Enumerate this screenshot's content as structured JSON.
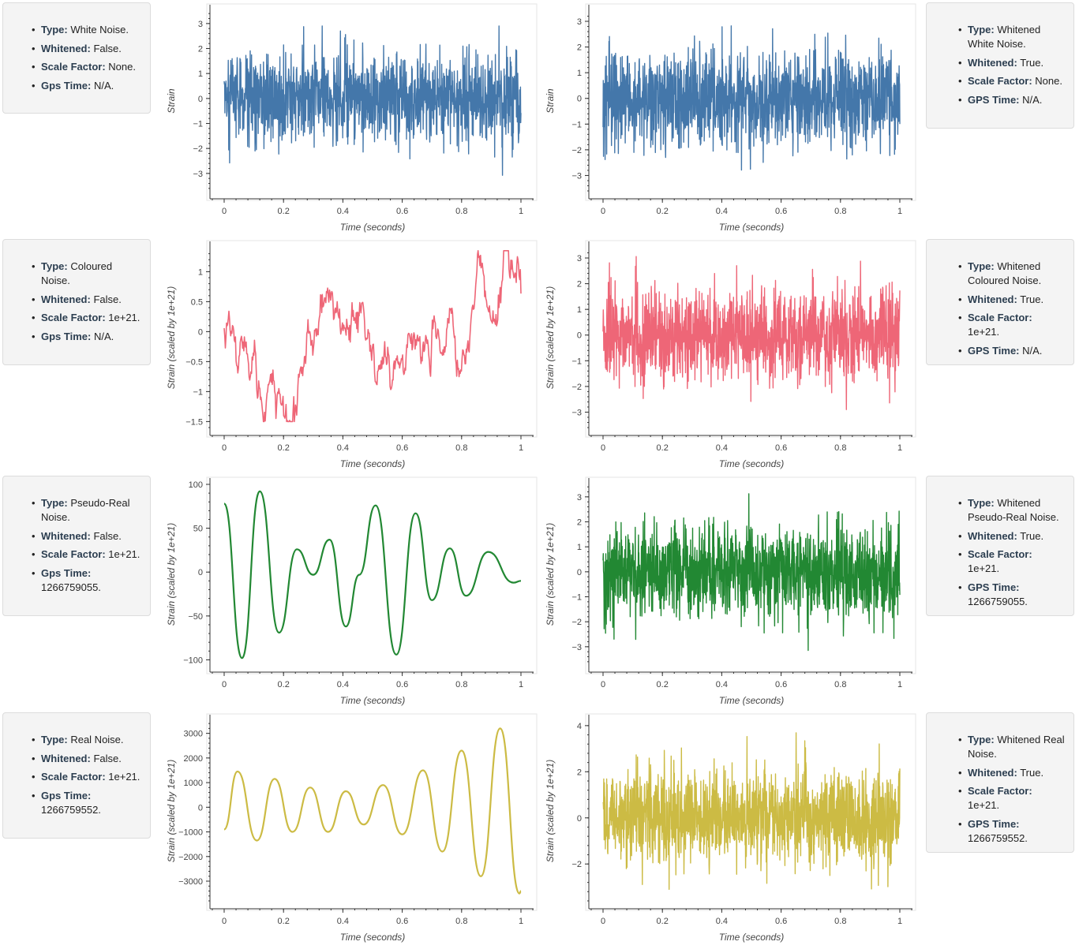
{
  "info_cards": [
    {
      "items": [
        {
          "label": "Type:",
          "value": " White Noise."
        },
        {
          "label": "Whitened:",
          "value": " False."
        },
        {
          "label": "Scale Factor:",
          "value": " None."
        },
        {
          "label": "Gps Time:",
          "value": " N/A."
        }
      ]
    },
    {
      "items": [
        {
          "label": "Type:",
          "value": " Whitened White Noise."
        },
        {
          "label": "Whitened:",
          "value": " True."
        },
        {
          "label": "Scale Factor:",
          "value": " None."
        },
        {
          "label": "GPS Time:",
          "value": " N/A."
        }
      ]
    },
    {
      "items": [
        {
          "label": "Type:",
          "value": " Coloured Noise."
        },
        {
          "label": "Whitened:",
          "value": " False."
        },
        {
          "label": "Scale Factor:",
          "value": " 1e+21."
        },
        {
          "label": "Gps Time:",
          "value": " N/A."
        }
      ]
    },
    {
      "items": [
        {
          "label": "Type:",
          "value": " Whitened Coloured Noise."
        },
        {
          "label": "Whitened:",
          "value": " True."
        },
        {
          "label": "Scale Factor:",
          "value": " 1e+21."
        },
        {
          "label": "GPS Time:",
          "value": " N/A."
        }
      ]
    },
    {
      "items": [
        {
          "label": "Type:",
          "value": " Pseudo-Real Noise."
        },
        {
          "label": "Whitened:",
          "value": " False."
        },
        {
          "label": "Scale Factor:",
          "value": " 1e+21."
        },
        {
          "label": "Gps Time:",
          "value": " 1266759055."
        }
      ]
    },
    {
      "items": [
        {
          "label": "Type:",
          "value": " Whitened Pseudo-Real Noise."
        },
        {
          "label": "Whitened:",
          "value": " True."
        },
        {
          "label": "Scale Factor:",
          "value": " 1e+21."
        },
        {
          "label": "GPS Time:",
          "value": " 1266759055."
        }
      ]
    },
    {
      "items": [
        {
          "label": "Type:",
          "value": " Real Noise."
        },
        {
          "label": "Whitened:",
          "value": " False."
        },
        {
          "label": "Scale Factor:",
          "value": " 1e+21."
        },
        {
          "label": "Gps Time:",
          "value": " 1266759552."
        }
      ]
    },
    {
      "items": [
        {
          "label": "Type:",
          "value": " Whitened Real Noise."
        },
        {
          "label": "Whitened:",
          "value": " True."
        },
        {
          "label": "Scale Factor:",
          "value": " 1e+21."
        },
        {
          "label": "GPS Time:",
          "value": " 1266759552."
        }
      ]
    }
  ],
  "chart_data": [
    {
      "type": "line",
      "name": "white-noise",
      "xlabel": "Time (seconds)",
      "ylabel": "Strain",
      "xlim": [
        0,
        1
      ],
      "ylim": [
        -3.7,
        3.5
      ],
      "yticks": [
        -3,
        -2,
        -1,
        0,
        1,
        2,
        3
      ],
      "ytick_labels": [
        "−3",
        "−2",
        "−1",
        "0",
        "1",
        "2",
        "3"
      ],
      "xticks": [
        0,
        0.2,
        0.4,
        0.6,
        0.8,
        1
      ],
      "xtick_labels": [
        "0",
        "0.2",
        "0.4",
        "0.6",
        "0.8",
        "1"
      ],
      "color": "#4477aa",
      "kind": "noise",
      "amplitude": 0.9,
      "max": 2.9,
      "min": -3.6,
      "seed": 11
    },
    {
      "type": "line",
      "name": "whitened-white-noise",
      "xlabel": "Time (seconds)",
      "ylabel": "Strain",
      "xlim": [
        0,
        1
      ],
      "ylim": [
        -3.6,
        3.4
      ],
      "yticks": [
        -3,
        -2,
        -1,
        0,
        1,
        2,
        3
      ],
      "ytick_labels": [
        "−3",
        "−2",
        "−1",
        "0",
        "1",
        "2",
        "3"
      ],
      "xticks": [
        0,
        0.2,
        0.4,
        0.6,
        0.8,
        1
      ],
      "xtick_labels": [
        "0",
        "0.2",
        "0.4",
        "0.6",
        "0.8",
        "1"
      ],
      "color": "#4477aa",
      "kind": "noise",
      "amplitude": 0.9,
      "max": 2.9,
      "min": -3.4,
      "seed": 12
    },
    {
      "type": "line",
      "name": "coloured-noise",
      "xlabel": "Time (seconds)",
      "ylabel": "Strain (scaled by 1e+21)",
      "xlim": [
        0,
        1
      ],
      "ylim": [
        -1.6,
        1.4
      ],
      "yticks": [
        -1.5,
        -1,
        -0.5,
        0,
        0.5,
        1
      ],
      "ytick_labels": [
        "−1.5",
        "−1",
        "−0.5",
        "0",
        "0.5",
        "1"
      ],
      "xticks": [
        0,
        0.2,
        0.4,
        0.6,
        0.8,
        1
      ],
      "xtick_labels": [
        "0",
        "0.2",
        "0.4",
        "0.6",
        "0.8",
        "1"
      ],
      "color": "#ee6677",
      "kind": "smooth-noise",
      "amplitude": 0.45,
      "max": 1.35,
      "min": -1.5,
      "seed": 21
    },
    {
      "type": "line",
      "name": "whitened-coloured-noise",
      "xlabel": "Time (seconds)",
      "ylabel": "Strain (scaled by 1e+21)",
      "xlim": [
        0,
        1
      ],
      "ylim": [
        -3.6,
        3.4
      ],
      "yticks": [
        -3,
        -2,
        -1,
        0,
        1,
        2,
        3
      ],
      "ytick_labels": [
        "−3",
        "−2",
        "−1",
        "0",
        "1",
        "2",
        "3"
      ],
      "xticks": [
        0,
        0.2,
        0.4,
        0.6,
        0.8,
        1
      ],
      "xtick_labels": [
        "0",
        "0.2",
        "0.4",
        "0.6",
        "0.8",
        "1"
      ],
      "color": "#ee6677",
      "kind": "noise",
      "amplitude": 0.9,
      "max": 3.3,
      "min": -3.4,
      "seed": 22
    },
    {
      "type": "line",
      "name": "pseudo-real-noise",
      "xlabel": "Time (seconds)",
      "ylabel": "Strain (scaled by 1e+21)",
      "xlim": [
        0,
        1
      ],
      "ylim": [
        -105,
        100
      ],
      "yticks": [
        -100,
        -50,
        0,
        50,
        100
      ],
      "ytick_labels": [
        "−100",
        "−50",
        "0",
        "50",
        "100"
      ],
      "xticks": [
        0,
        0.2,
        0.4,
        0.6,
        0.8,
        1
      ],
      "xtick_labels": [
        "0",
        "0.2",
        "0.4",
        "0.6",
        "0.8",
        "1"
      ],
      "color": "#228833",
      "kind": "points",
      "x": [
        0,
        0.06,
        0.12,
        0.185,
        0.245,
        0.3,
        0.355,
        0.41,
        0.455,
        0.51,
        0.58,
        0.645,
        0.7,
        0.76,
        0.815,
        0.89,
        0.975,
        1.0
      ],
      "y": [
        78,
        -98,
        92,
        -69,
        26,
        -3,
        37,
        -62,
        -3,
        76,
        -94,
        67,
        -32,
        27,
        -27,
        23,
        -12,
        -10
      ]
    },
    {
      "type": "line",
      "name": "whitened-pseudo-real-noise",
      "xlabel": "Time (seconds)",
      "ylabel": "Strain (scaled by 1e+21)",
      "xlim": [
        0,
        1
      ],
      "ylim": [
        -3.7,
        3.5
      ],
      "yticks": [
        -3,
        -2,
        -1,
        0,
        1,
        2,
        3
      ],
      "ytick_labels": [
        "−3",
        "−2",
        "−1",
        "0",
        "1",
        "2",
        "3"
      ],
      "xticks": [
        0,
        0.2,
        0.4,
        0.6,
        0.8,
        1
      ],
      "xtick_labels": [
        "0",
        "0.2",
        "0.4",
        "0.6",
        "0.8",
        "1"
      ],
      "color": "#228833",
      "kind": "noise",
      "amplitude": 0.9,
      "max": 3.2,
      "min": -3.5,
      "seed": 31
    },
    {
      "type": "line",
      "name": "real-noise",
      "xlabel": "Time (seconds)",
      "ylabel": "Strain (scaled by 1e+21)",
      "xlim": [
        0,
        1
      ],
      "ylim": [
        -3800,
        3500
      ],
      "yticks": [
        -3000,
        -2000,
        -1000,
        0,
        1000,
        2000,
        3000
      ],
      "ytick_labels": [
        "−3000",
        "−2000",
        "−1000",
        "0",
        "1000",
        "2000",
        "3000"
      ],
      "xticks": [
        0,
        0.2,
        0.4,
        0.6,
        0.8,
        1
      ],
      "xtick_labels": [
        "0",
        "0.2",
        "0.4",
        "0.6",
        "0.8",
        "1"
      ],
      "color": "#ccbb44",
      "kind": "points",
      "x": [
        0,
        0.045,
        0.11,
        0.17,
        0.23,
        0.29,
        0.35,
        0.41,
        0.47,
        0.535,
        0.6,
        0.67,
        0.735,
        0.8,
        0.865,
        0.93,
        0.995,
        1.0
      ],
      "y": [
        -900,
        1450,
        -1350,
        1150,
        -1000,
        800,
        -1000,
        650,
        -700,
        900,
        -1100,
        1500,
        -1800,
        2300,
        -2800,
        3200,
        -3500,
        -3400
      ]
    },
    {
      "type": "line",
      "name": "whitened-real-noise",
      "xlabel": "Time (seconds)",
      "ylabel": "Strain (scaled by 1e+21)",
      "xlim": [
        0,
        1
      ],
      "ylim": [
        -3.6,
        4.2
      ],
      "yticks": [
        -2,
        0,
        2,
        4
      ],
      "ytick_labels": [
        "−2",
        "0",
        "2",
        "4"
      ],
      "xticks": [
        0,
        0.2,
        0.4,
        0.6,
        0.8,
        1
      ],
      "xtick_labels": [
        "0",
        "0.2",
        "0.4",
        "0.6",
        "0.8",
        "1"
      ],
      "color": "#ccbb44",
      "kind": "noise",
      "amplitude": 1.0,
      "max": 3.7,
      "min": -3.5,
      "seed": 41
    }
  ]
}
